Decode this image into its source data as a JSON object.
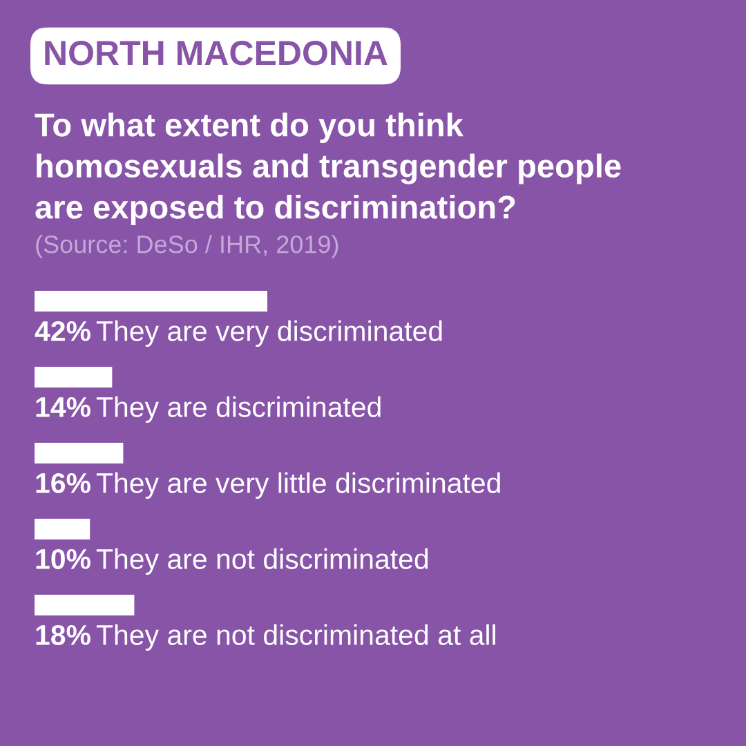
{
  "chart_data": {
    "type": "bar",
    "orientation": "horizontal",
    "title": "NORTH MACEDONIA",
    "subtitle": "To what extent do you think homosexuals and transgender people are exposed to discrimination?",
    "annotations": [
      "(Source: DeSo / IHR, 2019)"
    ],
    "categories": [
      "They are very discriminated",
      "They are discriminated",
      "They are very little discriminated",
      "They are not discriminated",
      "They are not discriminated at all"
    ],
    "values": [
      42,
      14,
      16,
      10,
      18
    ],
    "value_labels": [
      "42%",
      "14%",
      "16%",
      "10%",
      "18%"
    ],
    "color": "#ffffff",
    "tick_labels": false
  }
}
